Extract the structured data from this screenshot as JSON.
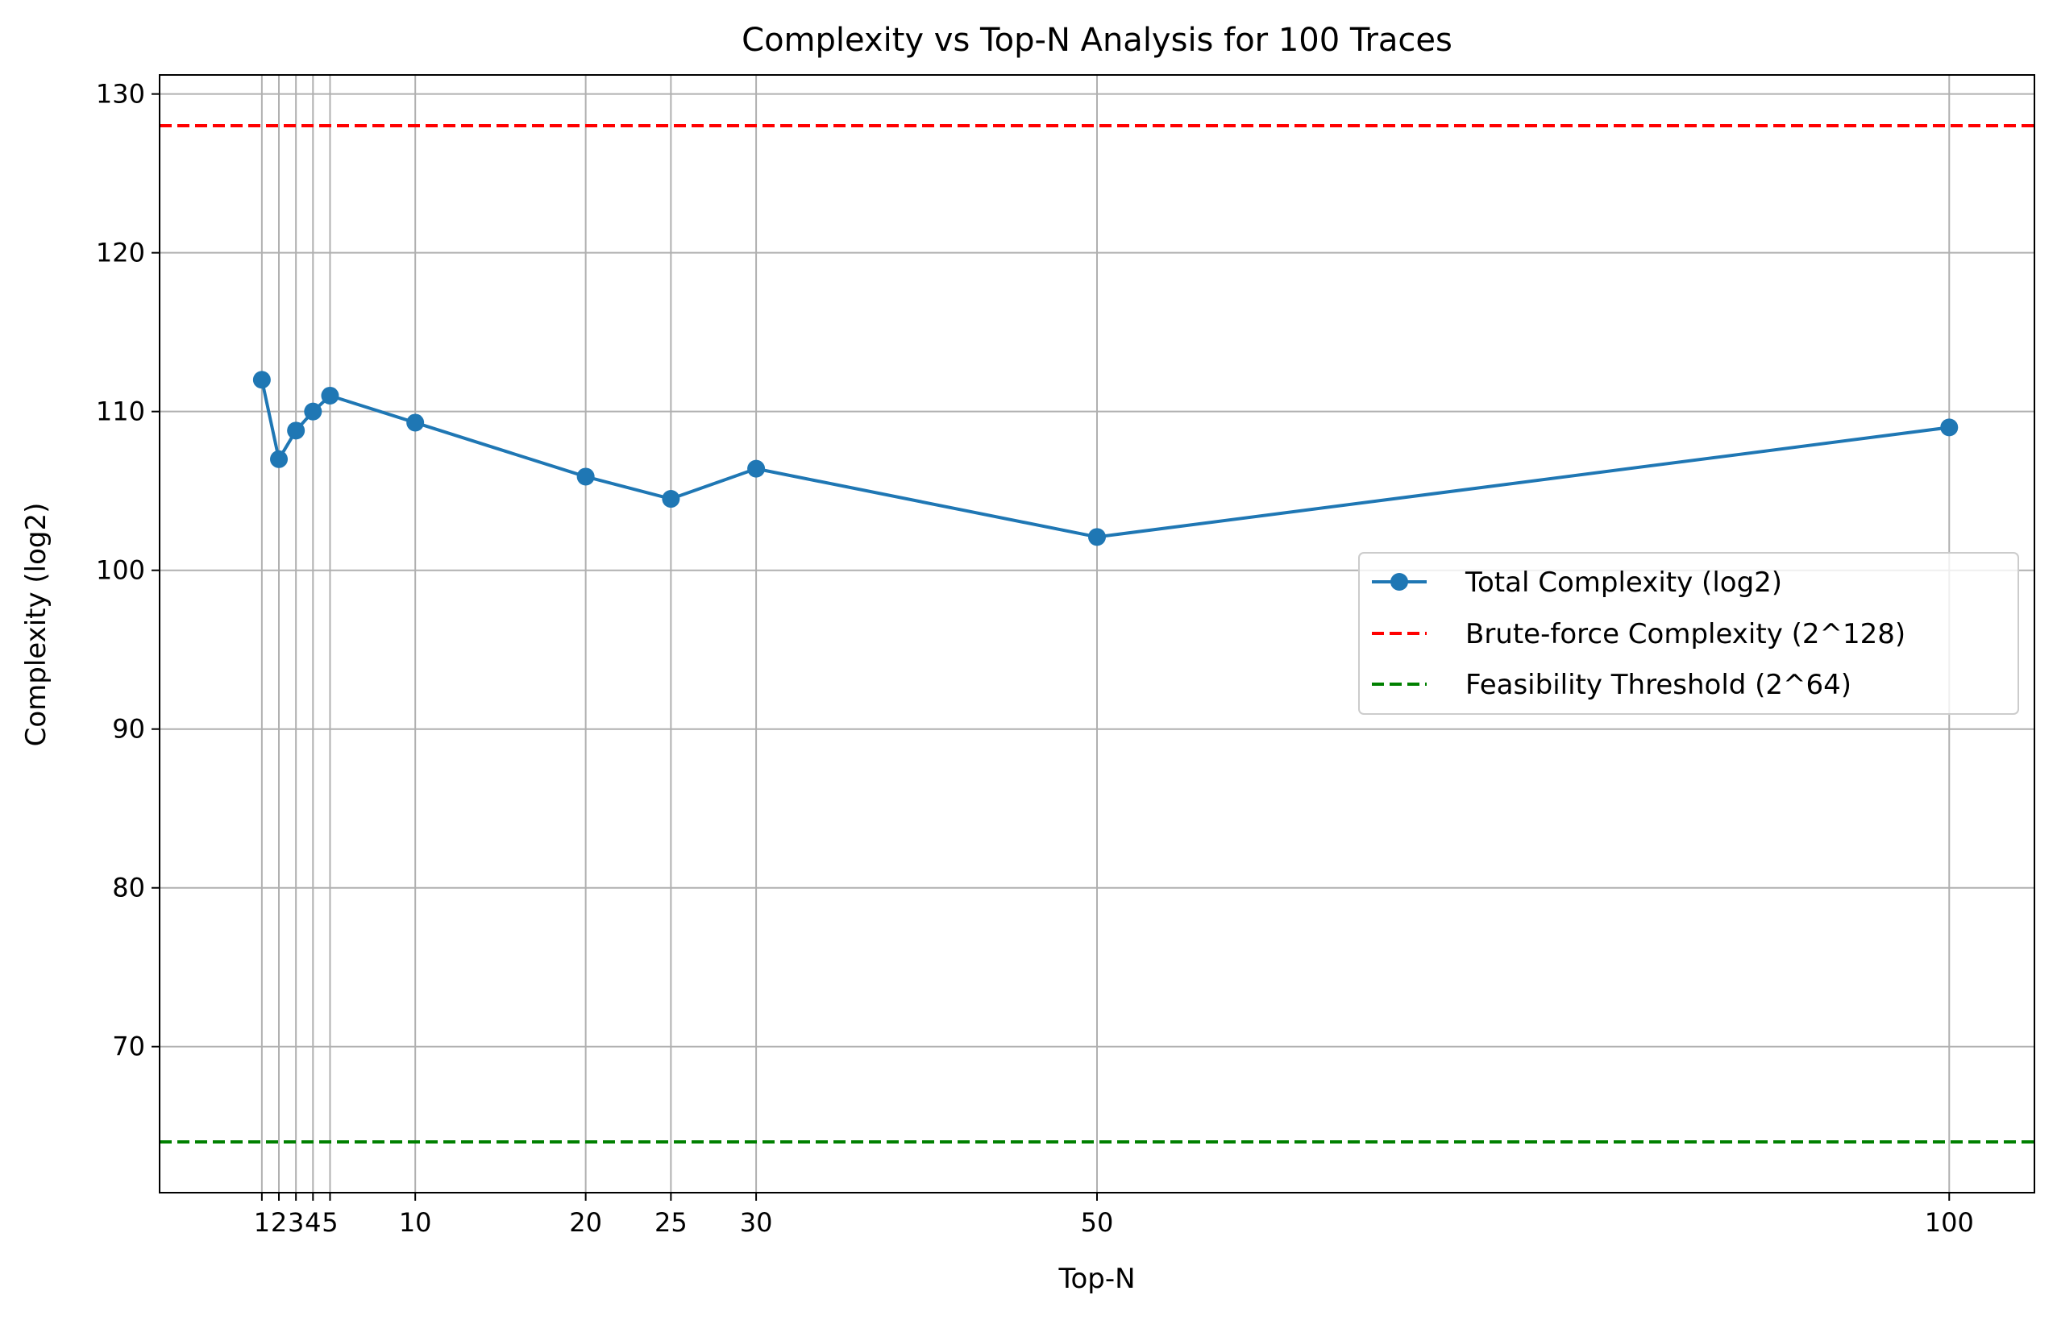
{
  "chart_data": {
    "type": "line",
    "title": "Complexity vs Top-N Analysis for 100 Traces",
    "xlabel": "Top-N",
    "ylabel": "Complexity (log2)",
    "xlim": [
      -5,
      105
    ],
    "ylim": [
      60.8,
      131.2
    ],
    "x_ticks": [
      1,
      2,
      3,
      4,
      5,
      10,
      20,
      25,
      30,
      50,
      100
    ],
    "y_ticks": [
      70,
      80,
      90,
      100,
      110,
      120,
      130
    ],
    "grid": true,
    "legend_position": "center-right",
    "series": [
      {
        "name": "Total Complexity (log2)",
        "color": "#1f77b4",
        "marker": "circle",
        "x": [
          1,
          2,
          3,
          4,
          5,
          10,
          20,
          25,
          30,
          50,
          100
        ],
        "y": [
          112.0,
          107.0,
          108.8,
          110.0,
          111.0,
          109.3,
          105.9,
          104.5,
          106.4,
          102.1,
          109.0
        ]
      }
    ],
    "reference_lines": [
      {
        "name": "Brute-force Complexity (2^128)",
        "y": 128,
        "color": "#ff0000",
        "style": "dashed"
      },
      {
        "name": "Feasibility Threshold (2^64)",
        "y": 64,
        "color": "#008000",
        "style": "dashed"
      }
    ]
  }
}
